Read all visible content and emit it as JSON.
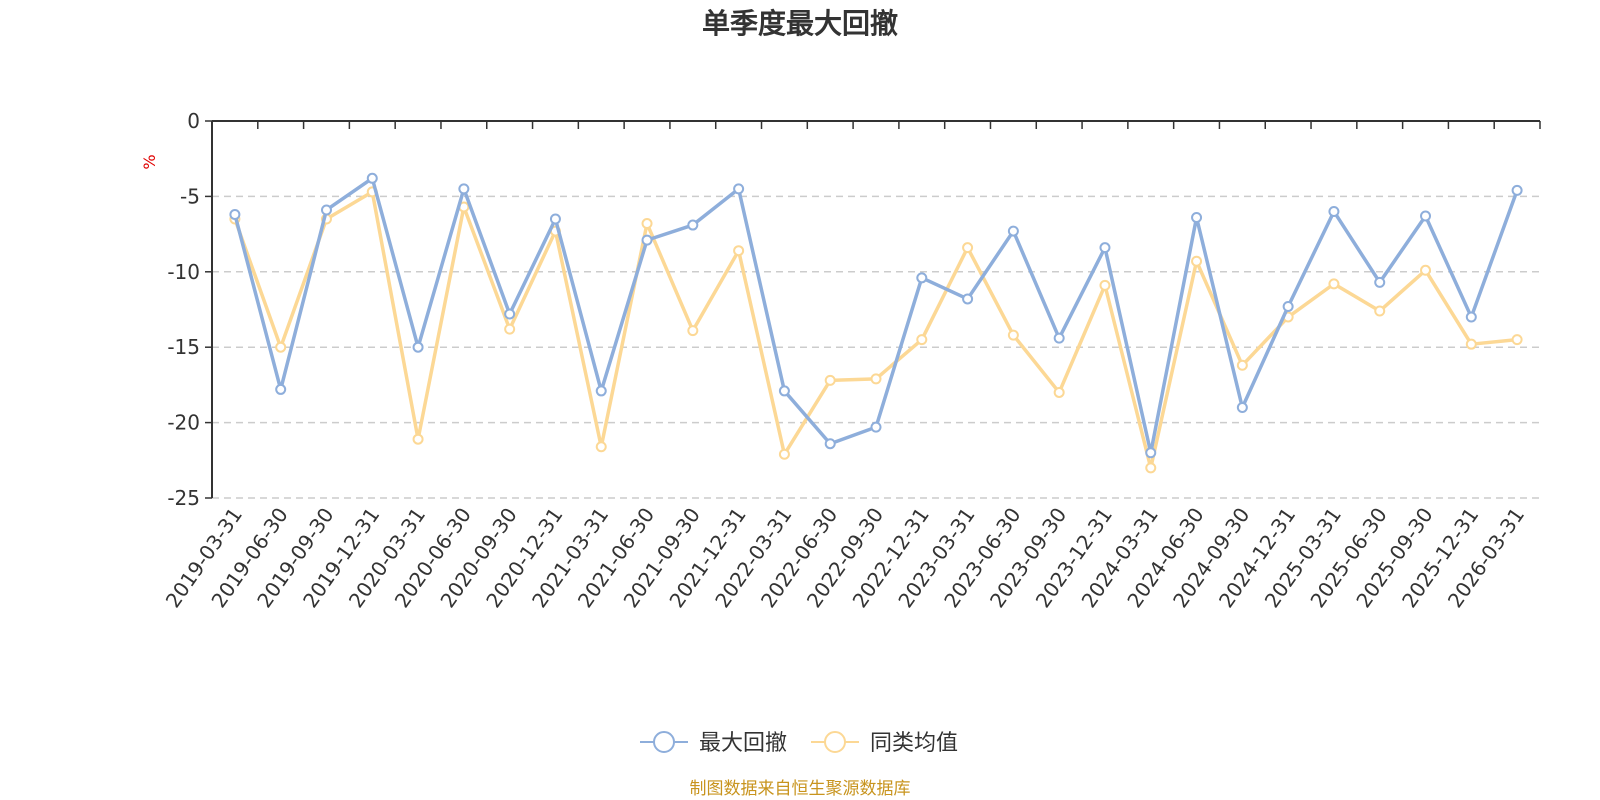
{
  "chart_data": {
    "type": "line",
    "title": "单季度最大回撤",
    "ylabel": "%",
    "ylim": [
      -25,
      0
    ],
    "yticks": [
      "0",
      "-5",
      "-10",
      "-15",
      "-20",
      "-25"
    ],
    "ytick_values": [
      0,
      -5,
      -10,
      -15,
      -20,
      -25
    ],
    "grid": true,
    "legend_position": "bottom",
    "categories": [
      "2019-03-31",
      "2019-06-30",
      "2019-09-30",
      "2019-12-31",
      "2020-03-31",
      "2020-06-30",
      "2020-09-30",
      "2020-12-31",
      "2021-03-31",
      "2021-06-30",
      "2021-09-30",
      "2021-12-31",
      "2022-03-31",
      "2022-06-30",
      "2022-09-30",
      "2022-12-31",
      "2023-03-31",
      "2023-06-30",
      "2023-09-30",
      "2023-12-31",
      "2024-03-31",
      "2024-06-30",
      "2024-09-30",
      "2024-12-31",
      "2025-03-31",
      "2025-06-30",
      "2025-09-30",
      "2025-12-31",
      "2026-03-31"
    ],
    "series": [
      {
        "name": "最大回撤",
        "color": "#8eaedb",
        "values": [
          -6.2,
          -17.8,
          -5.9,
          -3.8,
          -15.0,
          -4.5,
          -12.8,
          -6.5,
          -17.9,
          -7.9,
          -6.9,
          -4.5,
          -17.9,
          -21.4,
          -20.3,
          -10.4,
          -11.8,
          -7.3,
          -14.4,
          -8.4,
          -22.0,
          -6.4,
          -19.0,
          -12.3,
          -6.0,
          -10.7,
          -6.3,
          -13.0,
          -4.6
        ]
      },
      {
        "name": "同类均值",
        "color": "#fcd895",
        "values": [
          -6.5,
          -15.0,
          -6.5,
          -4.7,
          -21.1,
          -5.7,
          -13.8,
          -7.3,
          -21.6,
          -6.8,
          -13.9,
          -8.6,
          -22.1,
          -17.2,
          -17.1,
          -14.5,
          -8.4,
          -14.2,
          -18.0,
          -10.9,
          -23.0,
          -9.3,
          -16.2,
          -13.0,
          -10.8,
          -12.6,
          -9.9,
          -14.8,
          -14.5
        ]
      }
    ]
  },
  "footer": {
    "source_text": "制图数据来自恒生聚源数据库"
  }
}
